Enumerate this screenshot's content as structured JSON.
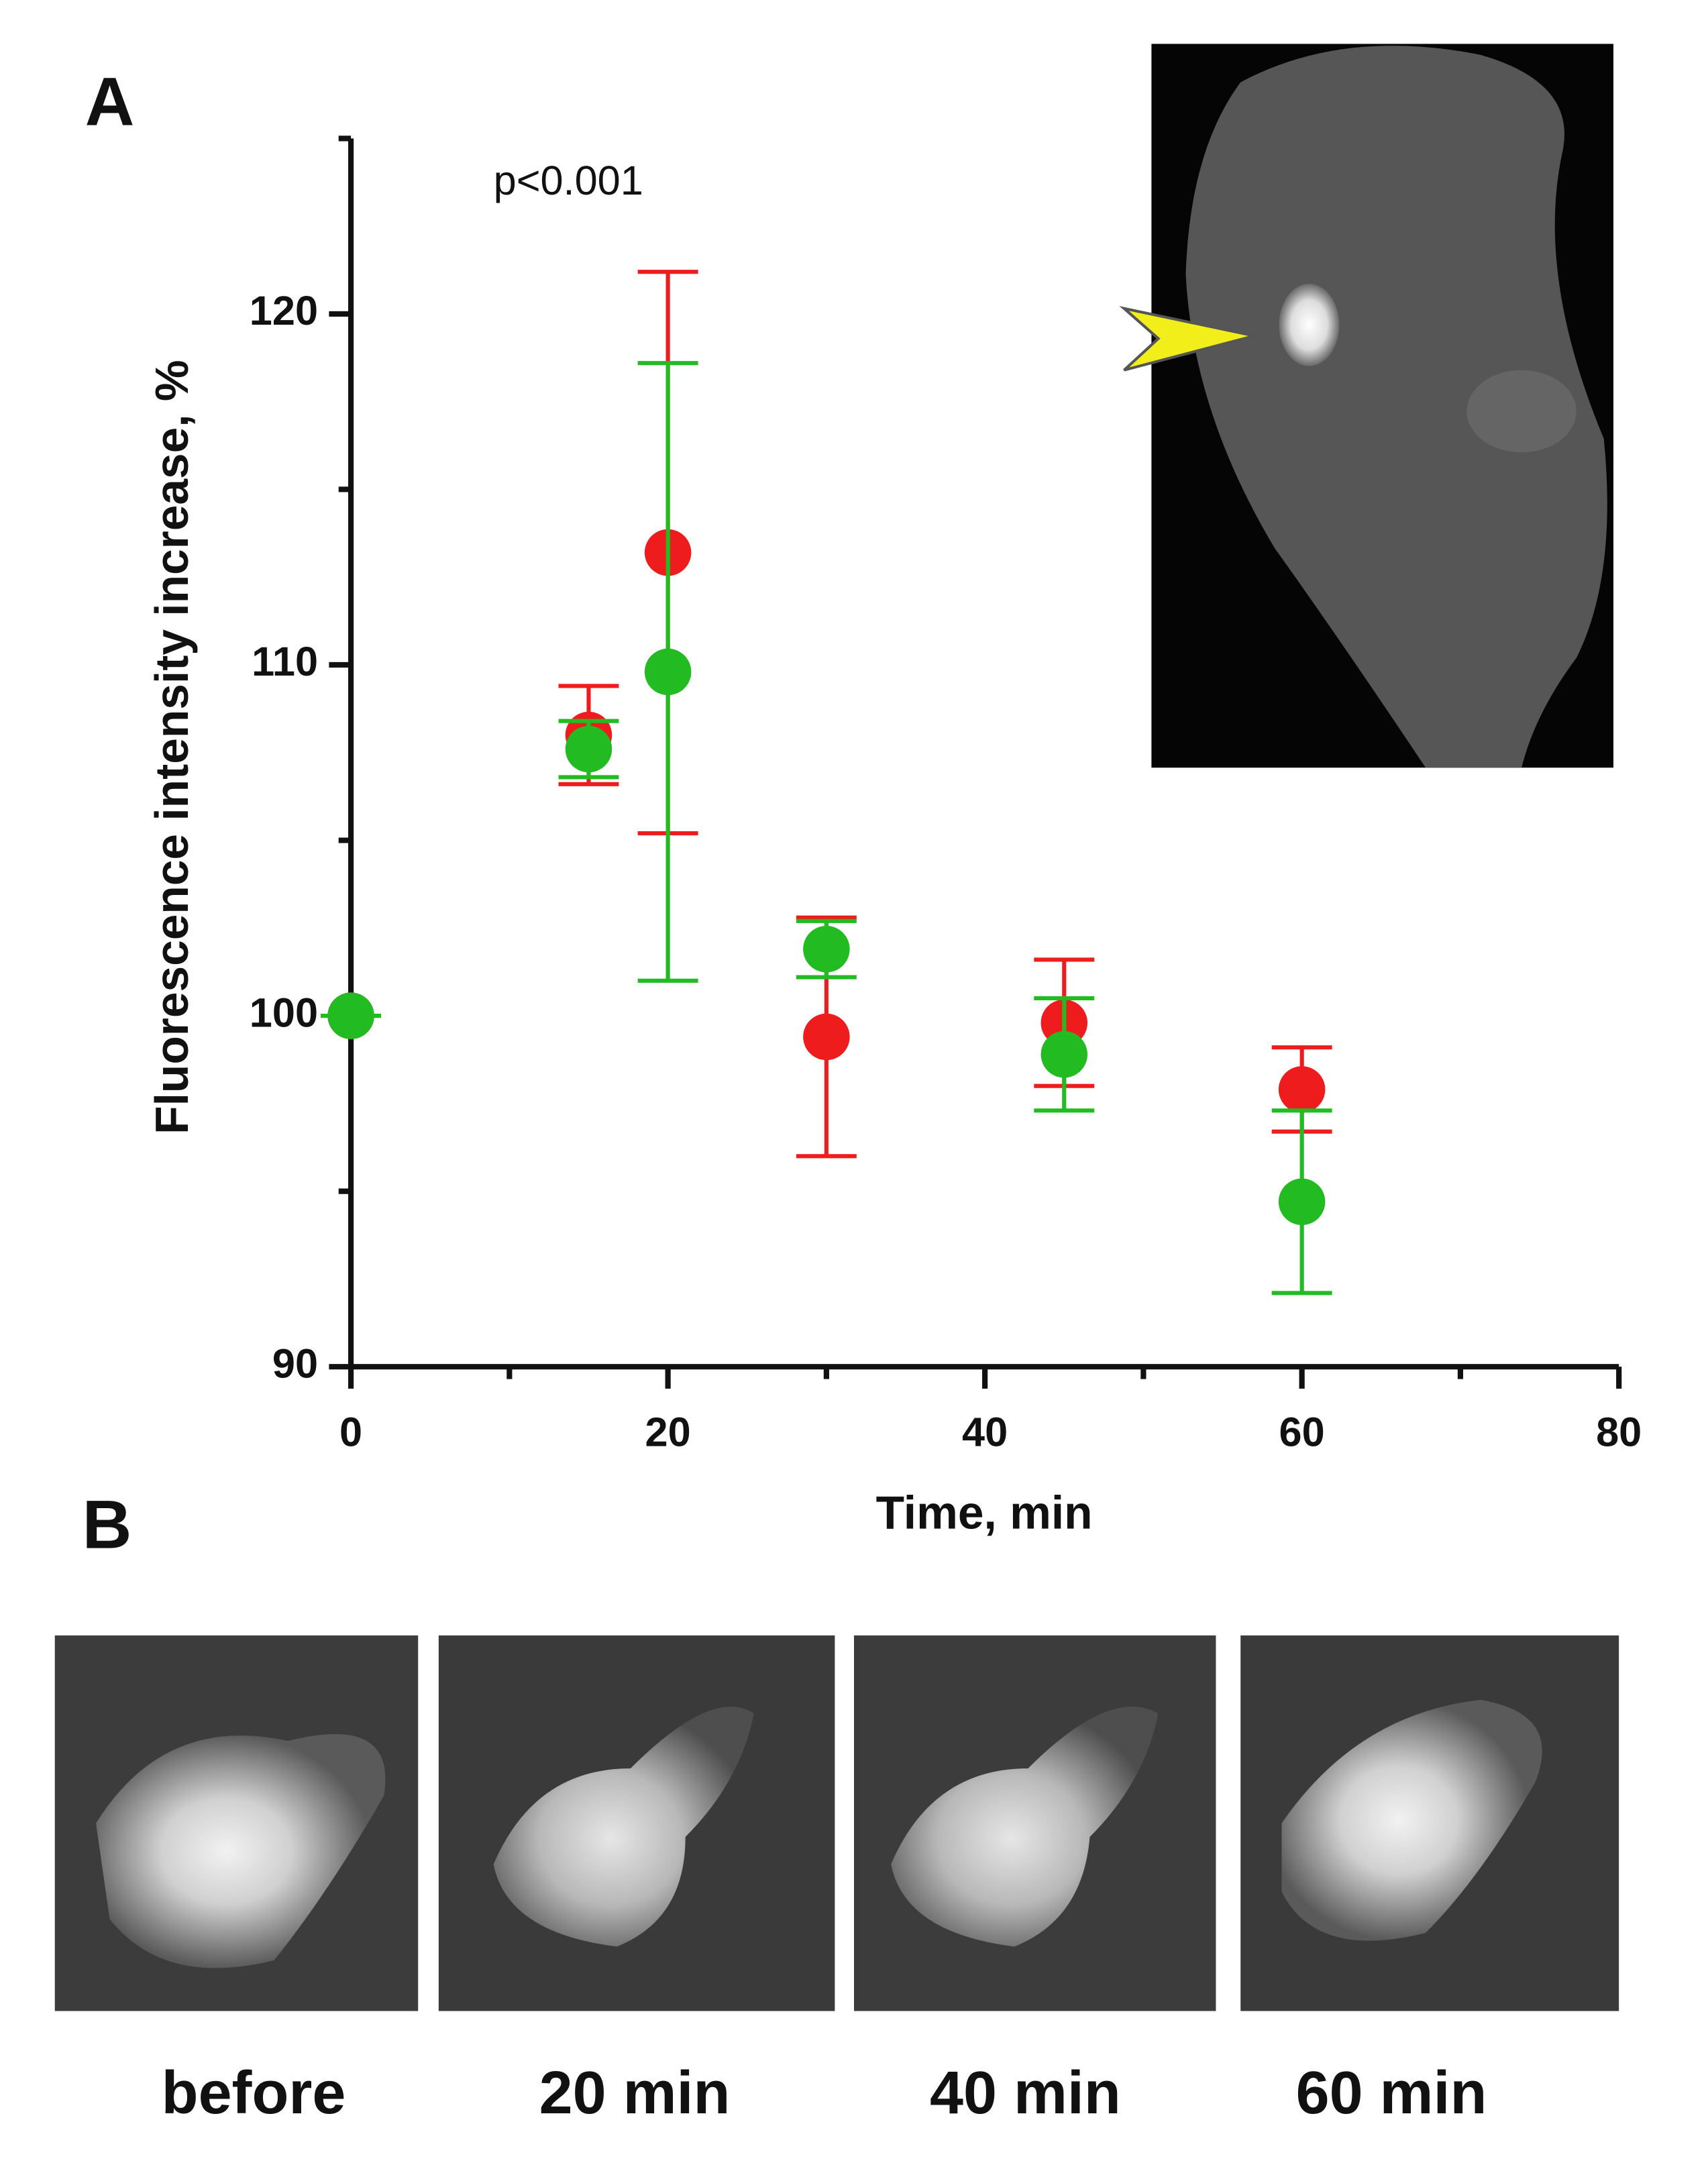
{
  "chart_data": {
    "type": "scatter",
    "panel_labels": [
      "A",
      "B"
    ],
    "annotation": "p<0.001",
    "xlabel": "Time, min",
    "ylabel": "Fluorescence intensity increase, %",
    "x": [
      0,
      15,
      20,
      30,
      45,
      60
    ],
    "series": [
      {
        "color": "#ee1c1c",
        "values": [
          100,
          108,
          113.2,
          99.4,
          99.8,
          97.9
        ],
        "errors": [
          0,
          1.4,
          8,
          3.4,
          1.8,
          1.2
        ]
      },
      {
        "color": "#22bb22",
        "values": [
          100,
          107.6,
          109.8,
          101.9,
          98.9,
          94.7
        ],
        "errors": [
          0,
          0.8,
          8.8,
          0.8,
          1.6,
          2.6
        ]
      }
    ],
    "xlim": [
      0,
      80
    ],
    "xticks": [
      0,
      20,
      40,
      60,
      80
    ],
    "xminorticks": [
      10,
      30,
      50,
      70
    ],
    "ylim": [
      90,
      125
    ],
    "yticks": [
      90,
      100,
      110,
      120
    ],
    "yminorticks": [
      95,
      105,
      115,
      125
    ],
    "image_captions": [
      "before",
      "20 min",
      "40 min",
      "60 min"
    ]
  }
}
